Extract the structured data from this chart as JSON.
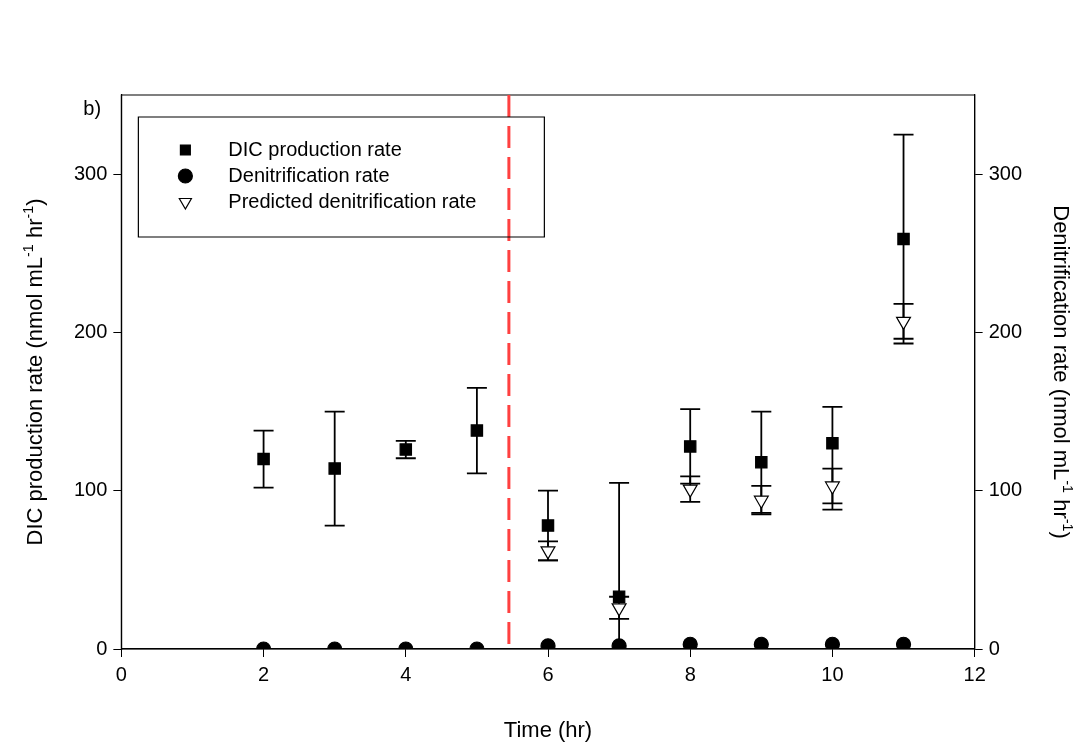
{
  "chart_data": {
    "type": "scatter",
    "xlabel": "Time (hr)",
    "ylabel": "DIC production rate (nmol mL$^{-1}$ hr$^{-1}$)",
    "y2label": "Denitrification rate (nmol mL$^{-1}$ hr$^{-1}$)",
    "annotations": [
      "b)"
    ],
    "xlim": [
      0,
      12
    ],
    "xticks": [
      0,
      2,
      4,
      6,
      8,
      10,
      12
    ],
    "ylim": [
      0,
      350
    ],
    "yticks": [
      0,
      100,
      200,
      300
    ],
    "y2lim": [
      0,
      350
    ],
    "y2ticks": [
      0,
      100,
      200,
      300
    ],
    "grid": false,
    "legend": "top left",
    "ref_lines": [
      {
        "axis": "x",
        "value": 5.45,
        "color": "#ff4040",
        "line_style": "dashed"
      }
    ],
    "series": [
      {
        "name": "DIC production rate",
        "color": "#000000",
        "marker": "square",
        "x": [
          2,
          3,
          4,
          5,
          6,
          7,
          8,
          9,
          10,
          11
        ],
        "values": [
          120,
          114,
          126,
          138,
          78,
          33,
          128,
          118,
          130,
          259
        ],
        "errors": [
          18,
          36,
          5.5,
          27,
          22,
          [
            0,
            105
          ],
          23.5,
          32,
          [
            88,
            153
          ],
          66
        ]
      },
      {
        "name": "Denitrification rate",
        "color": "#000000",
        "marker": "circle",
        "x": [
          2,
          3,
          4,
          5,
          6,
          7,
          8,
          9,
          10,
          11
        ],
        "values": [
          0,
          0,
          0,
          0,
          2,
          2,
          3,
          3,
          3,
          3
        ]
      },
      {
        "name": "Predicted denitrification rate",
        "color": "#000000",
        "marker": "triangle",
        "x": [
          6,
          7,
          8,
          9,
          10,
          11
        ],
        "values": [
          62,
          26,
          101,
          94,
          103,
          207
        ],
        "errors": [
          6,
          7,
          8,
          9,
          11,
          11
        ]
      }
    ]
  }
}
